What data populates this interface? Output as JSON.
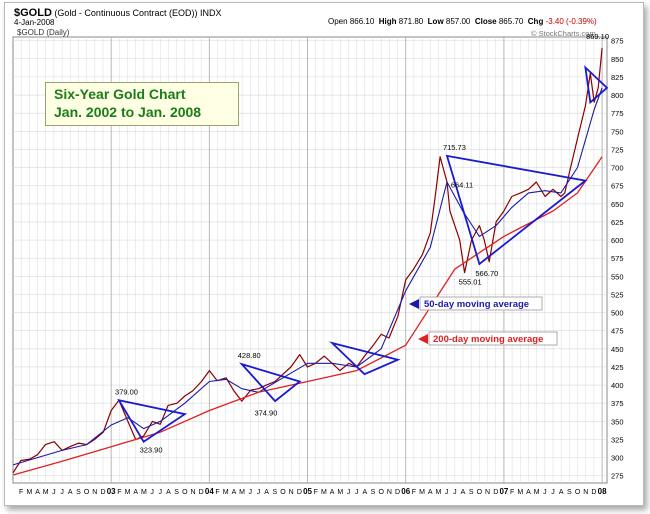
{
  "header": {
    "symbol": "$GOLD",
    "description": "(Gold - Continuous Contract (EOD))",
    "exchange": "INDX",
    "date": "4-Jan-2008",
    "open_label": "Open",
    "open": "866.10",
    "high_label": "High",
    "high": "871.80",
    "low_label": "Low",
    "low": "857.00",
    "close_label": "Close",
    "close": "865.70",
    "chg_label": "Chg",
    "chg": "-3.40 (-0.39%)",
    "watermark": "© StockCharts.com"
  },
  "chart_subtitle": "$GOLD (Daily)",
  "title_box": {
    "line1": "Six-Year Gold Chart",
    "line2": "Jan. 2002 to Jan. 2008"
  },
  "colors": {
    "price": "#8b0000",
    "ma50": "#1a1aa8",
    "ma200": "#e02020",
    "trend": "#1a1ad0",
    "title": "#1a7d1a",
    "grid": "#d9d9d9"
  },
  "chart_data": {
    "type": "line",
    "title": "Six-Year Gold Chart",
    "subtitle": "Jan. 2002 to Jan. 2008",
    "ylim": [
      265,
      880
    ],
    "xlim": [
      2002.0,
      2008.05
    ],
    "y_ticks": [
      275,
      300,
      325,
      350,
      375,
      400,
      425,
      450,
      475,
      500,
      525,
      550,
      575,
      600,
      625,
      650,
      675,
      700,
      725,
      750,
      775,
      800,
      825,
      850,
      875
    ],
    "x_tick_labels": [
      "F",
      "M",
      "A",
      "M",
      "J",
      "J",
      "A",
      "S",
      "O",
      "N",
      "D",
      "03",
      "F",
      "M",
      "A",
      "M",
      "J",
      "J",
      "A",
      "S",
      "O",
      "N",
      "D",
      "04",
      "F",
      "M",
      "A",
      "M",
      "J",
      "J",
      "A",
      "S",
      "O",
      "N",
      "D",
      "05",
      "F",
      "M",
      "A",
      "M",
      "J",
      "J",
      "A",
      "S",
      "O",
      "N",
      "D",
      "06",
      "F",
      "M",
      "A",
      "M",
      "J",
      "J",
      "A",
      "S",
      "O",
      "N",
      "D",
      "07",
      "F",
      "M",
      "A",
      "M",
      "J",
      "J",
      "A",
      "S",
      "O",
      "N",
      "D",
      "08"
    ],
    "series": [
      {
        "name": "$GOLD",
        "x": [
          2002.0,
          2002.08,
          2002.17,
          2002.25,
          2002.33,
          2002.42,
          2002.5,
          2002.58,
          2002.67,
          2002.75,
          2002.83,
          2002.92,
          2003.0,
          2003.08,
          2003.17,
          2003.25,
          2003.33,
          2003.42,
          2003.5,
          2003.58,
          2003.67,
          2003.75,
          2003.83,
          2003.92,
          2004.0,
          2004.08,
          2004.17,
          2004.25,
          2004.33,
          2004.42,
          2004.5,
          2004.58,
          2004.67,
          2004.75,
          2004.83,
          2004.92,
          2005.0,
          2005.08,
          2005.17,
          2005.25,
          2005.33,
          2005.42,
          2005.5,
          2005.58,
          2005.67,
          2005.75,
          2005.83,
          2005.92,
          2006.0,
          2006.08,
          2006.17,
          2006.25,
          2006.3,
          2006.35,
          2006.42,
          2006.45,
          2006.5,
          2006.55,
          2006.6,
          2006.67,
          2006.75,
          2006.8,
          2006.85,
          2006.92,
          2007.0,
          2007.08,
          2007.17,
          2007.25,
          2007.33,
          2007.42,
          2007.5,
          2007.58,
          2007.62,
          2007.67,
          2007.75,
          2007.83,
          2007.88,
          2007.92,
          2007.96,
          2008.0
        ],
        "values": [
          279,
          296,
          298,
          304,
          318,
          322,
          310,
          315,
          320,
          318,
          325,
          335,
          365,
          379,
          350,
          325,
          330,
          350,
          346,
          372,
          375,
          385,
          392,
          405,
          420,
          406,
          410,
          392,
          378,
          393,
          395,
          400,
          405,
          415,
          425,
          442,
          425,
          430,
          440,
          430,
          420,
          430,
          425,
          440,
          455,
          470,
          465,
          495,
          545,
          560,
          580,
          610,
          660,
          715,
          680,
          640,
          620,
          600,
          555,
          600,
          620,
          600,
          570,
          625,
          640,
          660,
          665,
          670,
          680,
          660,
          670,
          660,
          665,
          695,
          740,
          785,
          830,
          790,
          810,
          865
        ]
      },
      {
        "name": "50-day moving average",
        "x": [
          2002.0,
          2002.25,
          2002.5,
          2002.75,
          2003.0,
          2003.17,
          2003.33,
          2003.5,
          2003.75,
          2004.0,
          2004.17,
          2004.33,
          2004.5,
          2004.75,
          2005.0,
          2005.25,
          2005.5,
          2005.75,
          2006.0,
          2006.25,
          2006.42,
          2006.58,
          2006.75,
          2006.92,
          2007.08,
          2007.25,
          2007.42,
          2007.58,
          2007.75,
          2007.92,
          2008.0
        ],
        "values": [
          290,
          300,
          310,
          318,
          345,
          355,
          340,
          350,
          375,
          405,
          408,
          395,
          390,
          410,
          430,
          430,
          425,
          450,
          530,
          590,
          680,
          640,
          605,
          620,
          645,
          665,
          668,
          665,
          700,
          780,
          810
        ]
      },
      {
        "name": "200-day moving average",
        "x": [
          2002.0,
          2002.5,
          2003.0,
          2003.5,
          2004.0,
          2004.5,
          2005.0,
          2005.5,
          2006.0,
          2006.5,
          2007.0,
          2007.5,
          2007.75,
          2008.0
        ],
        "values": [
          276,
          295,
          315,
          335,
          365,
          390,
          405,
          420,
          455,
          560,
          605,
          640,
          665,
          715
        ]
      }
    ],
    "trendlines": [
      {
        "x": [
          2003.08,
          2003.75,
          2003.33
        ],
        "values": [
          379,
          360,
          322
        ]
      },
      {
        "x": [
          2004.33,
          2004.92,
          2004.67
        ],
        "values": [
          429,
          405,
          378
        ]
      },
      {
        "x": [
          2005.25,
          2005.92,
          2005.58
        ],
        "values": [
          458,
          435,
          415
        ]
      },
      {
        "x": [
          2006.42,
          2007.83,
          2006.75
        ],
        "values": [
          716,
          682,
          567
        ]
      },
      {
        "x": [
          2007.83,
          2008.05,
          2007.88
        ],
        "values": [
          838,
          810,
          790
        ]
      }
    ],
    "annotations": [
      {
        "text": "379.00",
        "x": 2003.08,
        "y": 379
      },
      {
        "text": "323.90",
        "x": 2003.33,
        "y": 323.9
      },
      {
        "text": "428.80",
        "x": 2004.33,
        "y": 428.8
      },
      {
        "text": "374.90",
        "x": 2004.5,
        "y": 374.9
      },
      {
        "text": "715.73",
        "x": 2006.42,
        "y": 715.73
      },
      {
        "text": "664.11",
        "x": 2006.5,
        "y": 664.11
      },
      {
        "text": "555.01",
        "x": 2006.58,
        "y": 555.01
      },
      {
        "text": "566.70",
        "x": 2006.75,
        "y": 566.7
      },
      {
        "text": "869.10",
        "x": 2008.0,
        "y": 869.1
      }
    ],
    "callouts": [
      {
        "text": "50-day moving average",
        "color": "#1a1aa8"
      },
      {
        "text": "200-day moving average",
        "color": "#e02020"
      }
    ],
    "grid": true,
    "legend": "none"
  }
}
